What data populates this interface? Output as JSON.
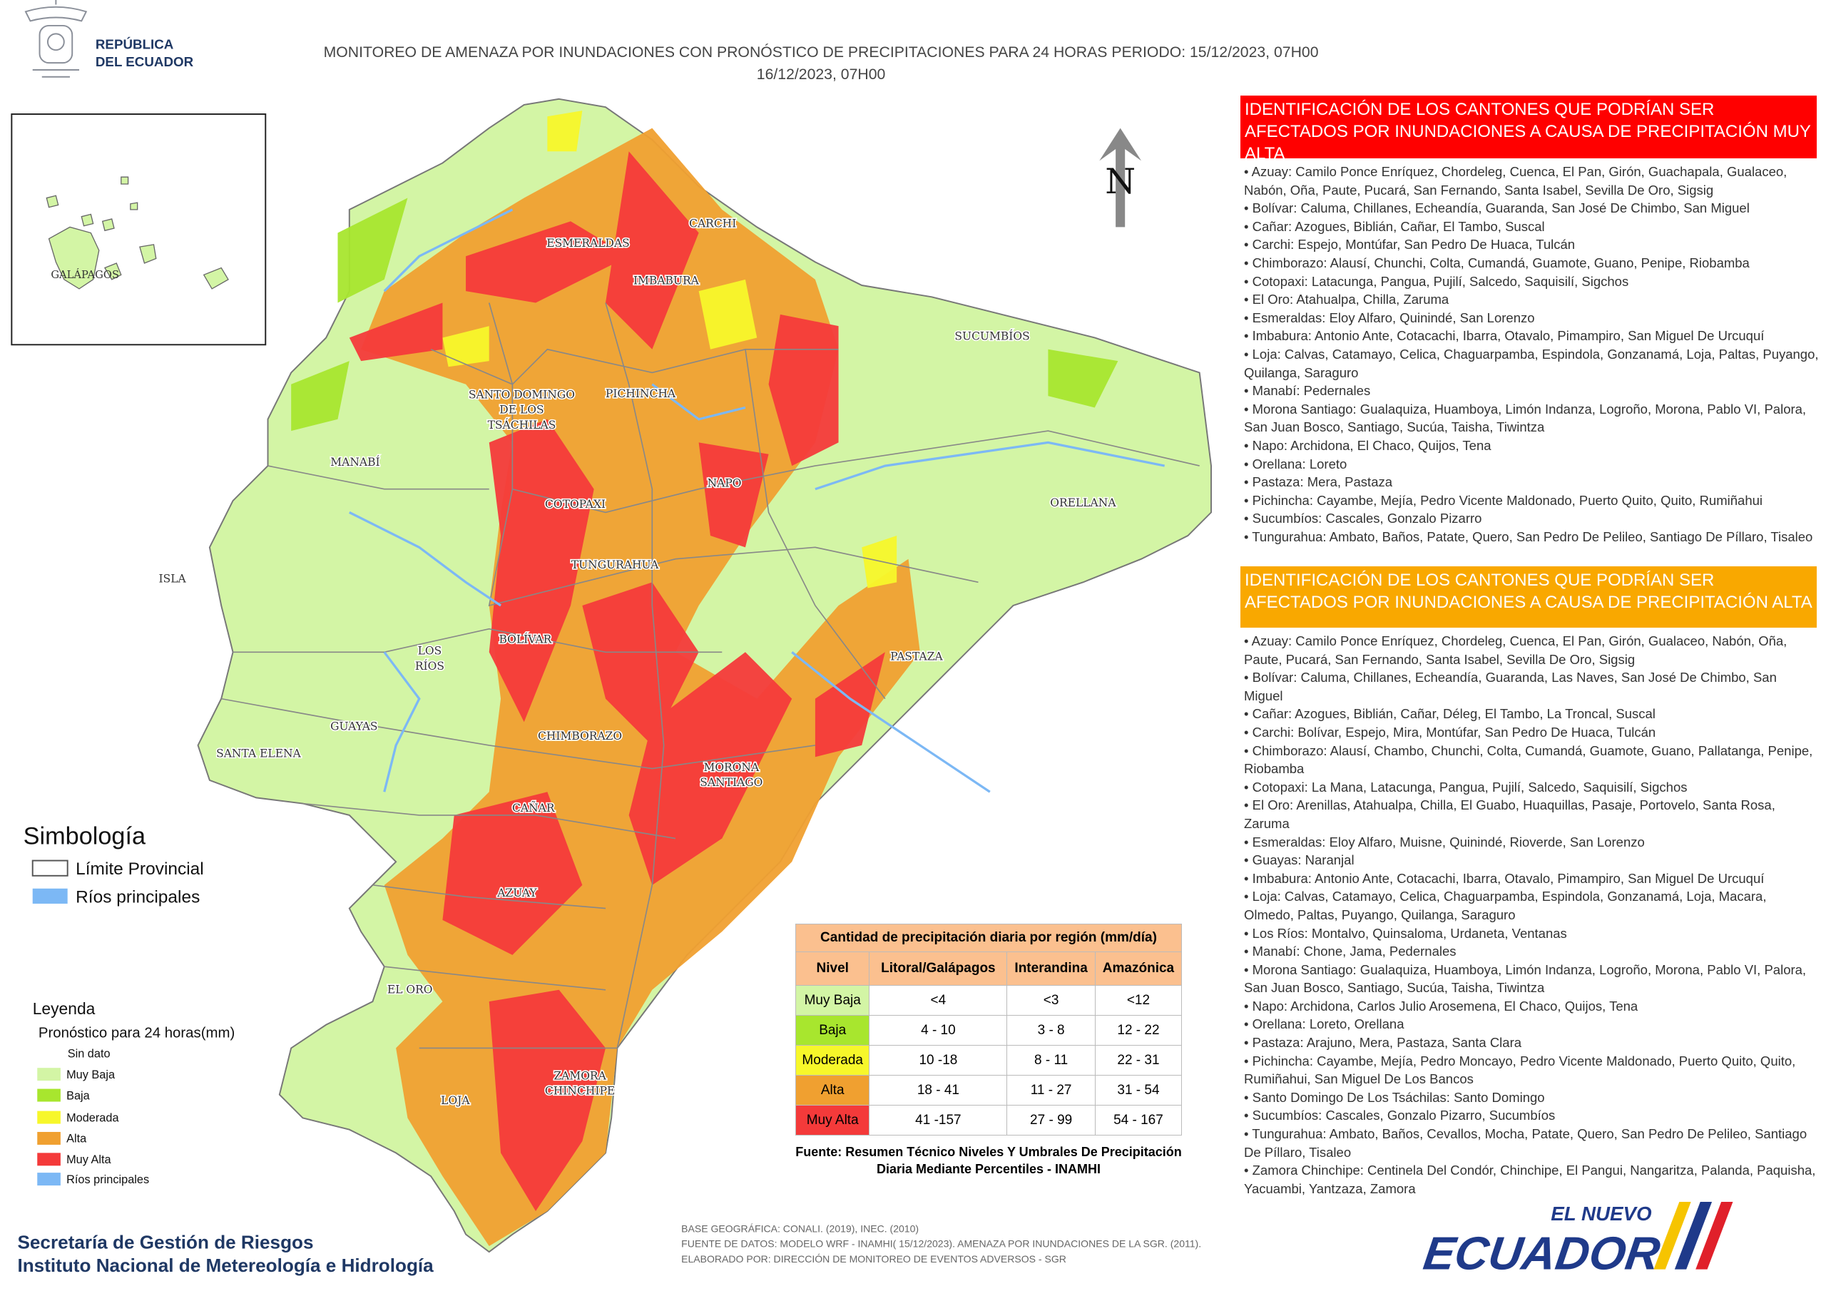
{
  "header": {
    "logo": [
      "REPÚBLICA",
      "DEL ECUADOR"
    ],
    "title": [
      "MONITOREO DE AMENAZA POR INUNDACIONES  CON PRONÓSTICO DE  PRECIPITACIONES PARA 24 HORAS  PERIODO: 15/12/2023, 07H00",
      "16/12/2023, 07H00"
    ]
  },
  "inset": {
    "label": "GALÁPAGOS"
  },
  "north": "N",
  "map_labels": [
    [
      "ESMERALDAS"
    ],
    [
      "CARCHI"
    ],
    [
      "IMBABURA"
    ],
    [
      "SUCUMBÍOS"
    ],
    [
      "SANTO DOMINGO",
      "DE LOS",
      "TSÁCHILAS"
    ],
    [
      "PICHINCHA"
    ],
    [
      "MANABÍ"
    ],
    [
      "NAPO"
    ],
    [
      "ORELLANA"
    ],
    [
      "COTOPAXI"
    ],
    [
      "TUNGURAHUA"
    ],
    [
      "ISLA"
    ],
    [
      "BOLÍVAR"
    ],
    [
      "LOS",
      "RÍOS"
    ],
    [
      "PASTAZA"
    ],
    [
      "GUAYAS"
    ],
    [
      "CHIMBORAZO"
    ],
    [
      "SANTA ELENA"
    ],
    [
      "MORONA",
      "SANTIAGO"
    ],
    [
      "CAÑAR"
    ],
    [
      "AZUAY"
    ],
    [
      "EL ORO"
    ],
    [
      "ZAMORA",
      "CHINCHIPE"
    ],
    [
      "LOJA"
    ]
  ],
  "panels": [
    {
      "title": "IDENTIFICACIÓN DE LOS CANTONES QUE PODRÍAN SER AFECTADOS POR INUNDACIONES  A CAUSA DE PRECIPITACIÓN MUY ALTA",
      "color": "#ff0000",
      "items": [
        "Azuay: Camilo Ponce Enríquez, Chordeleg, Cuenca, El Pan, Girón, Guachapala, Gualaceo, Nabón, Oña, Paute, Pucará, San Fernando, Santa Isabel, Sevilla De Oro, Sigsig",
        "Bolívar: Caluma, Chillanes, Echeandía, Guaranda, San José De Chimbo, San Miguel",
        "Cañar: Azogues, Biblián, Cañar, El Tambo, Suscal",
        "Carchi: Espejo, Montúfar, San Pedro De Huaca, Tulcán",
        "Chimborazo: Alausí, Chunchi, Colta, Cumandá, Guamote, Guano, Penipe, Riobamba",
        "Cotopaxi: Latacunga, Pangua, Pujilí, Salcedo, Saquisilí, Sigchos",
        "El Oro: Atahualpa, Chilla, Zaruma",
        "Esmeraldas: Eloy Alfaro, Quinindé, San Lorenzo",
        "Imbabura: Antonio Ante, Cotacachi, Ibarra, Otavalo, Pimampiro, San Miguel De Urcuquí",
        "Loja: Calvas, Catamayo, Celica, Chaguarpamba, Espindola, Gonzanamá, Loja, Paltas, Puyango, Quilanga, Saraguro",
        "Manabí: Pedernales",
        "Morona Santiago: Gualaquiza, Huamboya, Limón Indanza, Logroño, Morona, Pablo VI, Palora, San Juan Bosco, Santiago, Sucúa, Taisha, Tiwintza",
        "Napo: Archidona, El Chaco, Quijos, Tena",
        "Orellana: Loreto",
        "Pastaza: Mera, Pastaza",
        "Pichincha: Cayambe, Mejía, Pedro Vicente Maldonado, Puerto Quito, Quito, Rumiñahui",
        "Sucumbíos: Cascales, Gonzalo Pizarro",
        "Tungurahua: Ambato, Baños, Patate, Quero, San Pedro De Pelileo, Santiago De Píllaro, Tisaleo"
      ]
    },
    {
      "title": "IDENTIFICACIÓN DE LOS CANTONES QUE  PODRÍAN SER AFECTADOS POR INUNDACIONES  A CAUSA DE PRECIPITACIÓN  ALTA",
      "color": "#f9a800",
      "items": [
        "Azuay: Camilo Ponce Enríquez, Chordeleg, Cuenca, El Pan, Girón, Gualaceo, Nabón, Oña, Paute, Pucará, San Fernando, Santa Isabel, Sevilla De Oro, Sigsig",
        "Bolívar: Caluma, Chillanes, Echeandía, Guaranda, Las Naves, San José De Chimbo, San Miguel",
        "Cañar: Azogues, Biblián, Cañar, Déleg, El Tambo, La Troncal, Suscal",
        "Carchi: Bolívar, Espejo, Mira, Montúfar, San Pedro De Huaca, Tulcán",
        "Chimborazo: Alausí, Chambo, Chunchi, Colta, Cumandá, Guamote, Guano, Pallatanga, Penipe, Riobamba",
        "Cotopaxi: La Mana, Latacunga, Pangua, Pujilí, Salcedo, Saquisilí, Sigchos",
        "El Oro: Arenillas, Atahualpa, Chilla, El Guabo, Huaquillas, Pasaje, Portovelo, Santa Rosa, Zaruma",
        "Esmeraldas: Eloy Alfaro, Muisne, Quinindé, Rioverde, San Lorenzo",
        "Guayas: Naranjal",
        "Imbabura: Antonio Ante, Cotacachi, Ibarra, Otavalo, Pimampiro, San Miguel De Urcuquí",
        "Loja: Calvas, Catamayo, Celica, Chaguarpamba, Espindola, Gonzanamá, Loja, Macara, Olmedo, Paltas, Puyango, Quilanga, Saraguro",
        "Los Ríos: Montalvo, Quinsaloma, Urdaneta, Ventanas",
        "Manabí: Chone, Jama, Pedernales",
        "Morona Santiago: Gualaquiza, Huamboya, Limón Indanza, Logroño, Morona, Pablo VI, Palora, San Juan Bosco, Santiago, Sucúa, Taisha, Tiwintza",
        "Napo: Archidona, Carlos Julio Arosemena, El Chaco, Quijos, Tena",
        "Orellana: Loreto, Orellana",
        "Pastaza: Arajuno, Mera, Pastaza, Santa Clara",
        "Pichincha: Cayambe, Mejía, Pedro Moncayo, Pedro Vicente Maldonado, Puerto Quito, Quito, Rumiñahui, San Miguel De Los Bancos",
        "Santo Domingo De Los Tsáchilas: Santo Domingo",
        "Sucumbíos: Cascales, Gonzalo Pizarro, Sucumbíos",
        "Tungurahua: Ambato, Baños, Cevallos, Mocha, Patate, Quero, San Pedro De Pelileo, Santiago De Píllaro, Tisaleo",
        "Zamora Chinchipe: Centinela Del Condór, Chinchipe, El Pangui, Nangaritza, Palanda, Paquisha, Yacuambi, Yantzaza, Zamora"
      ]
    }
  ],
  "symbology": {
    "title": "Simbología",
    "items": [
      "Límite Provincial",
      "Ríos principales"
    ]
  },
  "legend": {
    "title": "Leyenda",
    "subtitle": "Pronóstico para 24 horas(mm)",
    "items": [
      {
        "label": "Sin dato",
        "color": "#ffffff"
      },
      {
        "label": "Muy Baja",
        "color": "#d3f5a5"
      },
      {
        "label": "Baja",
        "color": "#a8e62e"
      },
      {
        "label": "Moderada",
        "color": "#f7f72a"
      },
      {
        "label": "Alta",
        "color": "#f0a030"
      },
      {
        "label": "Muy Alta",
        "color": "#f43a3a"
      },
      {
        "label": "Ríos principales",
        "color": "#7cb8f5"
      }
    ]
  },
  "table": {
    "title": "Cantidad de precipitación diaria por región (mm/día)",
    "headers": [
      "Nivel",
      "Litoral/Galápagos",
      "Interandina",
      "Amazónica"
    ],
    "rows": [
      [
        "Muy Baja",
        "<4",
        "<3",
        "<12"
      ],
      [
        "Baja",
        "4 - 10",
        "3 - 8",
        "12 - 22"
      ],
      [
        "Moderada",
        "10 -18",
        "8 - 11",
        "22 - 31"
      ],
      [
        "Alta",
        "18 - 41",
        "11 - 27",
        "31 - 54"
      ],
      [
        "Muy Alta",
        "41 -157",
        "27 - 99",
        "54 - 167"
      ]
    ],
    "source": "Fuente: Resumen Técnico Niveles Y Umbrales De Precipitación Diaria Mediante Percentiles - INAMHI"
  },
  "footer": {
    "org": [
      "Secretaría de Gestión de Riesgos",
      "Instituto Nacional de Metereología e Hidrología"
    ],
    "notes": [
      "BASE GEOGRÁFICA: CONALI. (2019), INEC. (2010)",
      "FUENTE DE DATOS: MODELO WRF - INAMHI( 15/12/2023).  AMENAZA POR INUNDACIONES DE LA SGR. (2011).",
      "ELABORADO POR: DIRECCIÓN DE MONITOREO DE EVENTOS ADVERSOS - SGR"
    ],
    "brand": [
      "EL NUEVO",
      "ECUADOR"
    ]
  }
}
